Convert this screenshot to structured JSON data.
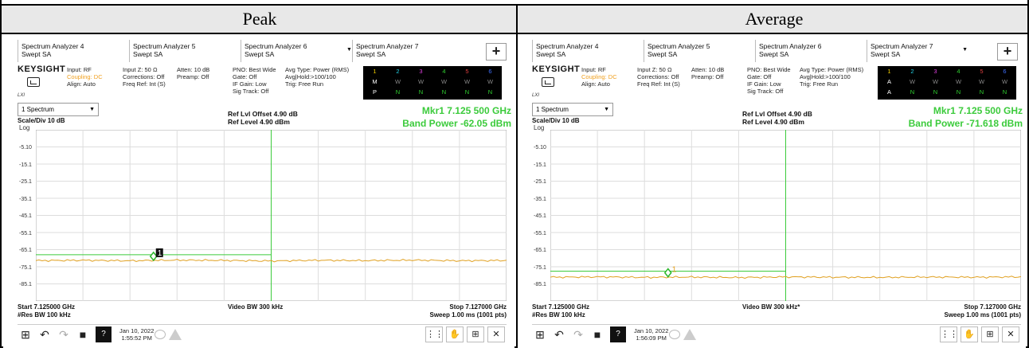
{
  "table": {
    "header_peak": "Peak",
    "header_average": "Average"
  },
  "tabs": [
    {
      "line1": "Spectrum Analyzer 4",
      "line2": "Swept SA"
    },
    {
      "line1": "Spectrum Analyzer 5",
      "line2": "Swept SA"
    },
    {
      "line1": "Spectrum Analyzer 6",
      "line2": "Swept SA"
    },
    {
      "line1": "Spectrum Analyzer 7",
      "line2": "Swept SA"
    }
  ],
  "add_label": "+",
  "info": {
    "brand": "KEYSIGHT",
    "lxi": "LXI",
    "col1": [
      "Input: RF",
      "Coupling: DC",
      "Align: Auto"
    ],
    "col2": [
      "Input Z: 50 Ω",
      "Corrections: Off",
      "Freq Ref: Int (S)"
    ],
    "col3": [
      "Atten: 10 dB",
      "Preamp: Off"
    ],
    "col4": [
      "PNO: Best Wide",
      "Gate: Off",
      "IF Gain: Low",
      "Sig Track: Off"
    ],
    "col5": [
      "Avg Type: Power (RMS)",
      "Avg|Hold:>100/100",
      "Trig: Free Run"
    ]
  },
  "traces": {
    "numbers": [
      "1",
      "2",
      "3",
      "4",
      "5",
      "6"
    ],
    "peak_row2": [
      "M",
      "W",
      "W",
      "W",
      "W",
      "W"
    ],
    "peak_row3": [
      "P",
      "N",
      "N",
      "N",
      "N",
      "N"
    ],
    "avg_row2": [
      "A",
      "W",
      "W",
      "W",
      "W",
      "W"
    ],
    "avg_row3": [
      "A",
      "N",
      "N",
      "N",
      "N",
      "N"
    ]
  },
  "window_select": "1 Spectrum",
  "scale": "Scale/Div 10 dB",
  "log": "Log",
  "ref_offset": "Ref Lvl Offset 4.90 dB",
  "ref_level": "Ref Level 4.90 dBm",
  "peak": {
    "marker": "Mkr1  7.125 500 GHz",
    "band_power": "Band Power  -62.05 dBm",
    "video_bw": "Video BW 300 kHz",
    "time": "1:55:52 PM"
  },
  "average": {
    "marker": "Mkr1  7.125 500 GHz",
    "band_power": "Band Power  -71.618 dBm",
    "video_bw": "Video BW 300 kHz*",
    "time": "1:56:09 PM"
  },
  "y_ticks": [
    "-5.10",
    "-15.1",
    "-25.1",
    "-35.1",
    "-45.1",
    "-55.1",
    "-65.1",
    "-75.1",
    "-85.1"
  ],
  "start_freq": "Start 7.125000 GHz",
  "res_bw": "#Res BW 100 kHz",
  "stop_freq": "Stop 7.127000 GHz",
  "sweep": "Sweep 1.00 ms (1001 pts)",
  "date": "Jan 10, 2022",
  "marker_label": "1",
  "help_label": "?",
  "chart_data": [
    {
      "type": "line",
      "title": "Peak",
      "xlabel": "",
      "ylabel": "",
      "x_range": [
        7.125,
        7.127
      ],
      "y_range": [
        4.9,
        -95.1
      ],
      "y_unit": "dBm",
      "series": [
        {
          "values": [
            -71.5,
            -71.3,
            -71.6,
            -71.2,
            -71.4,
            -71.7,
            -71.3,
            -71.5,
            -71.2,
            -71.6,
            -71.4
          ]
        }
      ],
      "band_power_dbm": -62.05,
      "marker_x_ghz": 7.1255,
      "marker_y_dbm": -69.0
    },
    {
      "type": "line",
      "title": "Average",
      "xlabel": "",
      "ylabel": "",
      "x_range": [
        7.125,
        7.127
      ],
      "y_range": [
        4.9,
        -95.1
      ],
      "y_unit": "dBm",
      "series": [
        {
          "values": [
            -81.2,
            -81.0,
            -81.3,
            -81.1,
            -81.4,
            -81.0,
            -81.2,
            -81.3,
            -81.1,
            -81.2,
            -81.0
          ]
        }
      ],
      "band_power_dbm": -71.618,
      "marker_x_ghz": 7.1255,
      "marker_y_dbm": -78.6
    }
  ]
}
